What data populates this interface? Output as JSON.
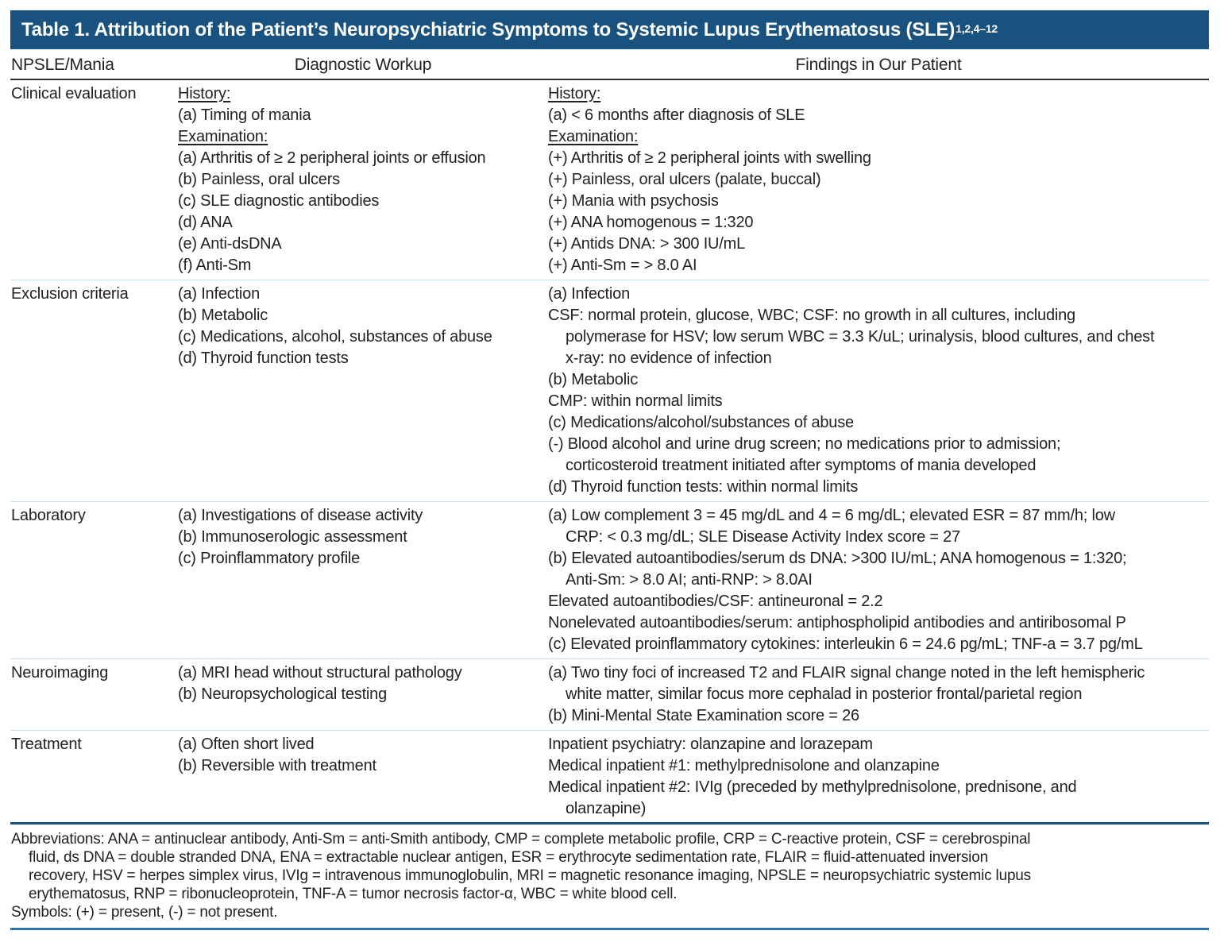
{
  "table": {
    "title": "Table 1. Attribution of the Patient’s Neuropsychiatric Symptoms to Systemic Lupus Erythematosus (SLE)",
    "title_superscript": "1,2,4–12",
    "accent_color": "#19527E",
    "divider_color": "#C8DCE9",
    "bottom_rule_color": "#2C74A8",
    "columns": [
      "NPSLE/Mania",
      "Diagnostic Workup",
      "Findings in Our Patient"
    ],
    "rows": [
      {
        "category": "Clinical evaluation",
        "workup": [
          {
            "t": "History:",
            "u": true
          },
          {
            "t": "(a) Timing of mania"
          },
          {
            "t": "Examination:",
            "u": true
          },
          {
            "t": "(a) Arthritis of ≥ 2 peripheral joints or effusion"
          },
          {
            "t": "(b) Painless, oral ulcers"
          },
          {
            "t": "(c) SLE diagnostic antibodies"
          },
          {
            "t": "(d) ANA"
          },
          {
            "t": "(e) Anti-dsDNA"
          },
          {
            "t": "(f) Anti-Sm"
          }
        ],
        "findings": [
          {
            "t": "History:",
            "u": true
          },
          {
            "t": "(a) < 6 months after diagnosis of SLE"
          },
          {
            "t": "Examination:",
            "u": true
          },
          {
            "t": "(+) Arthritis of ≥ 2 peripheral joints with swelling"
          },
          {
            "t": "(+) Painless, oral ulcers (palate, buccal)"
          },
          {
            "t": "(+) Mania with psychosis"
          },
          {
            "t": "(+) ANA homogenous = 1:320"
          },
          {
            "t": "(+) Antids DNA: > 300 IU/mL"
          },
          {
            "t": "(+) Anti-Sm = > 8.0 AI"
          }
        ]
      },
      {
        "category": "Exclusion criteria",
        "workup": [
          {
            "t": "(a) Infection"
          },
          {
            "t": "(b) Metabolic"
          },
          {
            "t": "(c) Medications, alcohol, substances of abuse"
          },
          {
            "t": "(d) Thyroid function tests"
          }
        ],
        "findings": [
          {
            "t": "(a) Infection"
          },
          {
            "t": "CSF: normal protein, glucose, WBC; CSF: no growth in all cultures, including"
          },
          {
            "t": "polymerase for HSV; low serum WBC = 3.3 K/uL; urinalysis, blood cultures, and chest",
            "i": true
          },
          {
            "t": "x-ray: no evidence of infection",
            "i": true
          },
          {
            "t": "(b) Metabolic"
          },
          {
            "t": "CMP: within normal limits"
          },
          {
            "t": "(c) Medications/alcohol/substances of abuse"
          },
          {
            "t": "(-) Blood alcohol and urine drug screen; no medications prior to admission;"
          },
          {
            "t": "corticosteroid treatment initiated after symptoms of mania developed",
            "i": true
          },
          {
            "t": "(d) Thyroid function tests: within normal limits"
          }
        ]
      },
      {
        "category": "Laboratory",
        "workup": [
          {
            "t": "(a) Investigations of disease activity"
          },
          {
            "t": "(b) Immunoserologic assessment"
          },
          {
            "t": "(c) Proinflammatory profile"
          }
        ],
        "findings": [
          {
            "t": "(a) Low complement 3 = 45 mg/dL and 4 = 6 mg/dL; elevated ESR = 87 mm/h; low"
          },
          {
            "t": "CRP: < 0.3 mg/dL; SLE Disease Activity Index score = 27",
            "i": true
          },
          {
            "t": "(b) Elevated autoantibodies/serum ds DNA: >300 IU/mL; ANA homogenous = 1:320;"
          },
          {
            "t": "Anti-Sm: > 8.0 AI; anti-RNP: > 8.0AI",
            "i": true
          },
          {
            "t": "Elevated autoantibodies/CSF: antineuronal = 2.2"
          },
          {
            "t": "Nonelevated autoantibodies/serum: antiphospholipid antibodies and antiribosomal P"
          },
          {
            "t": "(c) Elevated proinflammatory cytokines: interleukin 6 = 24.6 pg/mL; TNF-a = 3.7 pg/mL"
          }
        ]
      },
      {
        "category": "Neuroimaging",
        "workup": [
          {
            "t": "(a) MRI head without structural pathology"
          },
          {
            "t": "(b) Neuropsychological testing"
          }
        ],
        "findings": [
          {
            "t": "(a) Two tiny foci of increased T2 and FLAIR signal change noted in the left hemispheric"
          },
          {
            "t": "white matter, similar focus more cephalad in posterior frontal/parietal region",
            "i": true
          },
          {
            "t": "(b) Mini-Mental State Examination score = 26"
          }
        ]
      },
      {
        "category": "Treatment",
        "workup": [
          {
            "t": "(a) Often short lived"
          },
          {
            "t": "(b) Reversible with treatment"
          }
        ],
        "findings": [
          {
            "t": "Inpatient psychiatry: olanzapine and lorazepam"
          },
          {
            "t": "Medical inpatient #1: methylprednisolone and olanzapine"
          },
          {
            "t": "Medical inpatient #2: IVIg (preceded by methylprednisolone, prednisone, and"
          },
          {
            "t": "olanzapine)",
            "i": true
          }
        ]
      }
    ],
    "footnotes": [
      {
        "t": "Abbreviations: ANA = antinuclear antibody, Anti-Sm = anti-Smith antibody, CMP = complete metabolic profile, CRP = C-reactive protein, CSF = cerebrospinal"
      },
      {
        "t": "fluid, ds DNA = double stranded DNA, ENA = extractable nuclear antigen, ESR = erythrocyte sedimentation rate, FLAIR = fluid-attenuated inversion",
        "i": true
      },
      {
        "t": "recovery, HSV = herpes simplex virus, IVIg = intravenous immunoglobulin, MRI = magnetic resonance imaging, NPSLE = neuropsychiatric systemic lupus",
        "i": true
      },
      {
        "t": "erythematosus, RNP = ribonucleoprotein, TNF-A = tumor necrosis factor-α, WBC = white blood cell.",
        "i": true
      },
      {
        "t": "Symbols: (+) = present, (-) = not present."
      }
    ]
  }
}
